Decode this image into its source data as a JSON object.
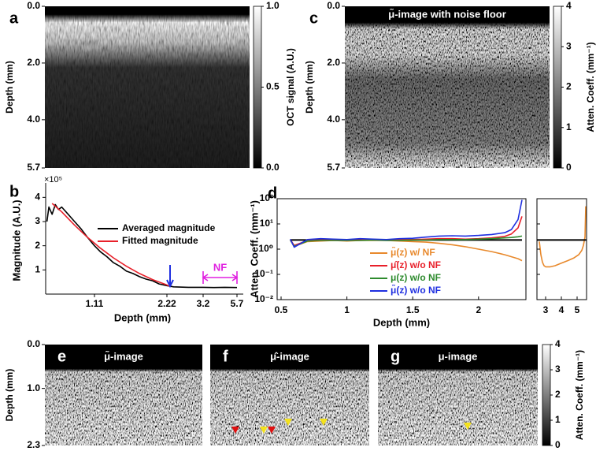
{
  "chart_data": [
    {
      "type": "image",
      "panel": "a",
      "ylabel": "Depth (mm)",
      "ylim": [
        0,
        5.7
      ],
      "yticks": [
        {
          "value": 0,
          "label": "0.0"
        },
        {
          "value": 2,
          "label": "2.0"
        },
        {
          "value": 4,
          "label": "4.0"
        },
        {
          "value": 5.7,
          "label": "5.7"
        }
      ],
      "colorbar": {
        "label": "OCT signal (A.U.)",
        "lim": [
          0,
          1
        ],
        "ticks": [
          {
            "value": 0,
            "label": "0.0"
          },
          {
            "value": 0.5,
            "label": "0.5"
          },
          {
            "value": 1,
            "label": "1.0"
          }
        ]
      }
    },
    {
      "type": "image",
      "panel": "c",
      "title": "μ̃-image with noise floor",
      "ylabel": "Depth (mm)",
      "ylim": [
        0,
        5.7
      ],
      "yticks": [
        {
          "value": 0,
          "label": "0.0"
        },
        {
          "value": 2,
          "label": "2.0"
        },
        {
          "value": 4,
          "label": "4.0"
        },
        {
          "value": 5.7,
          "label": "5.7"
        }
      ],
      "colorbar": {
        "label": "Atten. Coeff. (mm⁻¹)",
        "lim": [
          0,
          4
        ],
        "ticks": [
          0,
          1,
          2,
          3,
          4
        ]
      }
    },
    {
      "type": "line",
      "panel": "b",
      "ylabel": "Magnitude (A.U.)",
      "xlabel": "Depth (mm)",
      "y_multiplier": "×10⁵",
      "xlim": [
        0.35,
        5.7
      ],
      "xticks": [
        1.11,
        2.22,
        3.2,
        5.7
      ],
      "ylim": [
        0,
        4.5
      ],
      "yticks": [
        1,
        2,
        3,
        4
      ],
      "legend": "upper right",
      "annotation": "NF",
      "series": [
        {
          "name": "Averaged magnitude",
          "color": "#000000",
          "x": [
            0.37,
            0.4,
            0.45,
            0.5,
            0.55,
            0.6,
            0.7,
            0.8,
            0.9,
            1.0,
            1.11,
            1.2,
            1.3,
            1.4,
            1.5,
            1.6,
            1.7,
            1.8,
            1.9,
            2.0,
            2.1,
            2.22,
            2.4,
            2.8,
            3.2,
            4.0,
            4.8,
            5.7
          ],
          "values": [
            3.0,
            3.6,
            3.3,
            3.7,
            3.5,
            3.6,
            3.3,
            3.0,
            2.7,
            2.35,
            2.0,
            1.75,
            1.55,
            1.3,
            1.15,
            0.95,
            0.85,
            0.72,
            0.62,
            0.55,
            0.42,
            0.35,
            0.3,
            0.28,
            0.28,
            0.27,
            0.28,
            0.27
          ]
        },
        {
          "name": "Fitted magnitude",
          "color": "#e8202a",
          "x": [
            0.45,
            0.6,
            0.8,
            1.0,
            1.2,
            1.4,
            1.6,
            1.8,
            2.0,
            2.2,
            2.3
          ],
          "values": [
            3.75,
            3.4,
            2.85,
            2.35,
            1.9,
            1.5,
            1.15,
            0.85,
            0.6,
            0.4,
            0.32
          ]
        }
      ]
    },
    {
      "type": "line",
      "panel": "d",
      "ylabel": "Atten. Coeff. (mm⁻¹)",
      "xlabel": "Depth (mm)",
      "yscale": "log",
      "xlim": [
        0.47,
        2.36
      ],
      "xticks": [
        0.5,
        1.0,
        1.5,
        2.0
      ],
      "ylim": [
        0.01,
        100
      ],
      "yticks": [
        {
          "value": 0.01,
          "label": "10⁻²"
        },
        {
          "value": 0.1,
          "label": "10⁻¹"
        },
        {
          "value": 1,
          "label": "10⁰"
        },
        {
          "value": 10,
          "label": "10¹"
        },
        {
          "value": 100,
          "label": "10²"
        }
      ],
      "hline": 2.3,
      "x": [
        0.57,
        0.6,
        0.7,
        0.8,
        0.9,
        1.0,
        1.1,
        1.2,
        1.3,
        1.4,
        1.5,
        1.6,
        1.7,
        1.8,
        1.9,
        2.0,
        2.1,
        2.2,
        2.25,
        2.3,
        2.33
      ],
      "series": [
        {
          "name": "μ̃(z) w/ NF",
          "color": "#e8892c",
          "values": [
            2.3,
            1.3,
            2.0,
            2.1,
            2.2,
            2.1,
            2.2,
            2.2,
            2.2,
            2.1,
            2.0,
            1.9,
            1.7,
            1.5,
            1.25,
            1.0,
            0.8,
            0.6,
            0.5,
            0.42,
            0.35
          ]
        },
        {
          "name": "μ̂(z) w/o NF",
          "color": "#e8202a",
          "values": [
            2.4,
            1.4,
            2.2,
            2.3,
            2.3,
            2.3,
            2.3,
            2.4,
            2.3,
            2.4,
            2.4,
            2.5,
            2.6,
            2.6,
            2.5,
            2.6,
            2.8,
            3.2,
            4.0,
            7.0,
            20
          ]
        },
        {
          "name": "μ(z) w/o NF",
          "color": "#2e8b2e",
          "values": [
            2.3,
            1.3,
            2.1,
            2.2,
            2.2,
            2.2,
            2.2,
            2.3,
            2.2,
            2.2,
            2.3,
            2.3,
            2.4,
            2.4,
            2.4,
            2.5,
            2.6,
            2.8,
            2.9,
            3.1,
            3.3
          ]
        },
        {
          "name": "μ̃(z) w/o NF",
          "color": "#1f2fe0",
          "values": [
            2.5,
            1.2,
            2.4,
            2.6,
            2.5,
            2.4,
            2.6,
            2.5,
            2.4,
            2.6,
            2.7,
            3.0,
            3.3,
            3.4,
            3.3,
            3.5,
            3.8,
            4.5,
            6.0,
            15,
            90
          ]
        }
      ],
      "inset": {
        "xlim": [
          2.45,
          5.6
        ],
        "xticks": [
          3,
          4,
          5
        ],
        "hline": 2.3,
        "color": "#e8892c",
        "x": [
          2.6,
          2.7,
          2.8,
          2.9,
          3.0,
          3.3,
          3.6,
          4.0,
          4.4,
          4.8,
          5.1,
          5.3,
          5.4,
          5.5,
          5.55
        ],
        "values": [
          2.0,
          0.6,
          0.3,
          0.22,
          0.2,
          0.2,
          0.22,
          0.28,
          0.35,
          0.45,
          0.6,
          0.9,
          1.4,
          3,
          50
        ]
      }
    },
    {
      "type": "image",
      "panel": "e",
      "title": "μ̃-image",
      "ylabel": "Depth (mm)",
      "ylim": [
        0,
        2.3
      ],
      "yticks": [
        {
          "value": 0,
          "label": "0.0"
        },
        {
          "value": 1,
          "label": "1.0"
        },
        {
          "value": 2.3,
          "label": "2.3"
        }
      ]
    },
    {
      "type": "image",
      "panel": "f",
      "title": "μ̂-image"
    },
    {
      "type": "image",
      "panel": "g",
      "title": "μ-image",
      "colorbar": {
        "label": "Atten. Coeff. (mm⁻¹)",
        "lim": [
          0,
          4
        ],
        "ticks": [
          0,
          1,
          2,
          3,
          4
        ]
      }
    }
  ]
}
